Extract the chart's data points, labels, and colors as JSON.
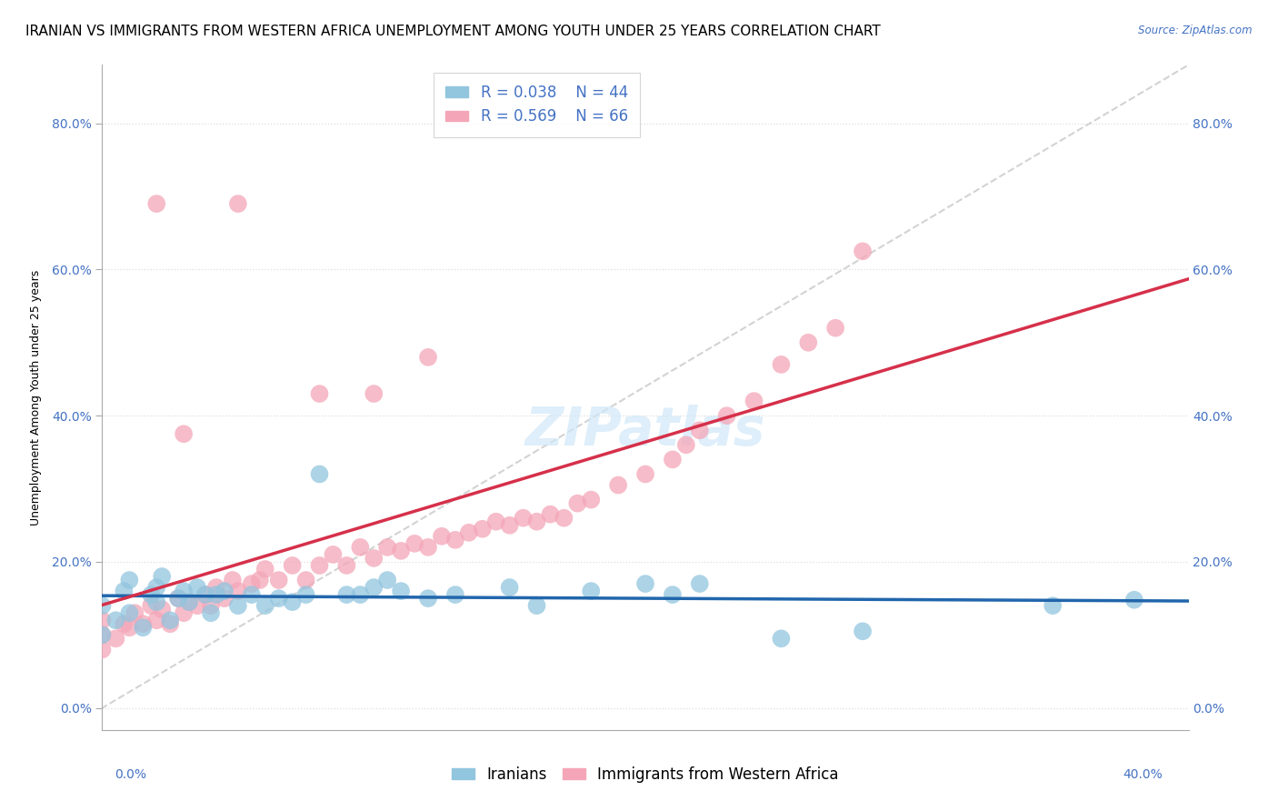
{
  "title": "IRANIAN VS IMMIGRANTS FROM WESTERN AFRICA UNEMPLOYMENT AMONG YOUTH UNDER 25 YEARS CORRELATION CHART",
  "source": "Source: ZipAtlas.com",
  "ylabel": "Unemployment Among Youth under 25 years",
  "yticks": [
    "0.0%",
    "20.0%",
    "40.0%",
    "60.0%",
    "80.0%"
  ],
  "ytick_vals": [
    0.0,
    0.2,
    0.4,
    0.6,
    0.8
  ],
  "xrange": [
    0.0,
    0.4
  ],
  "yrange": [
    -0.03,
    0.88
  ],
  "R_iranians": 0.038,
  "N_iranians": 44,
  "R_western_africa": 0.569,
  "N_western_africa": 66,
  "color_iranians": "#92c5de",
  "color_western_africa": "#f4a6b8",
  "regression_color_iranians": "#2166ac",
  "regression_color_western_africa": "#d6304a",
  "diagonal_color": "#c8c8c8",
  "iranians_x": [
    0.0,
    0.0,
    0.005,
    0.008,
    0.01,
    0.01,
    0.015,
    0.018,
    0.02,
    0.02,
    0.022,
    0.025,
    0.028,
    0.03,
    0.032,
    0.035,
    0.038,
    0.04,
    0.042,
    0.045,
    0.05,
    0.055,
    0.06,
    0.065,
    0.07,
    0.075,
    0.08,
    0.09,
    0.095,
    0.1,
    0.105,
    0.11,
    0.12,
    0.13,
    0.15,
    0.16,
    0.18,
    0.2,
    0.21,
    0.22,
    0.25,
    0.28,
    0.35,
    0.38
  ],
  "iranians_y": [
    0.1,
    0.14,
    0.12,
    0.16,
    0.13,
    0.175,
    0.11,
    0.155,
    0.145,
    0.165,
    0.18,
    0.12,
    0.15,
    0.16,
    0.145,
    0.165,
    0.155,
    0.13,
    0.155,
    0.16,
    0.14,
    0.155,
    0.14,
    0.15,
    0.145,
    0.155,
    0.32,
    0.155,
    0.155,
    0.165,
    0.175,
    0.16,
    0.15,
    0.155,
    0.165,
    0.14,
    0.16,
    0.17,
    0.155,
    0.17,
    0.095,
    0.105,
    0.14,
    0.148
  ],
  "western_africa_x": [
    0.0,
    0.0,
    0.0,
    0.005,
    0.008,
    0.01,
    0.012,
    0.015,
    0.018,
    0.02,
    0.022,
    0.025,
    0.028,
    0.03,
    0.032,
    0.035,
    0.038,
    0.04,
    0.042,
    0.045,
    0.048,
    0.05,
    0.055,
    0.058,
    0.06,
    0.065,
    0.07,
    0.075,
    0.08,
    0.085,
    0.09,
    0.095,
    0.1,
    0.105,
    0.11,
    0.115,
    0.12,
    0.125,
    0.13,
    0.135,
    0.14,
    0.145,
    0.15,
    0.155,
    0.16,
    0.165,
    0.17,
    0.175,
    0.18,
    0.19,
    0.2,
    0.21,
    0.215,
    0.22,
    0.23,
    0.24,
    0.25,
    0.26,
    0.27,
    0.05,
    0.12,
    0.03,
    0.08,
    0.1,
    0.28,
    0.02
  ],
  "western_africa_y": [
    0.08,
    0.1,
    0.12,
    0.095,
    0.115,
    0.11,
    0.13,
    0.115,
    0.14,
    0.12,
    0.135,
    0.115,
    0.15,
    0.13,
    0.145,
    0.14,
    0.155,
    0.14,
    0.165,
    0.15,
    0.175,
    0.16,
    0.17,
    0.175,
    0.19,
    0.175,
    0.195,
    0.175,
    0.195,
    0.21,
    0.195,
    0.22,
    0.205,
    0.22,
    0.215,
    0.225,
    0.22,
    0.235,
    0.23,
    0.24,
    0.245,
    0.255,
    0.25,
    0.26,
    0.255,
    0.265,
    0.26,
    0.28,
    0.285,
    0.305,
    0.32,
    0.34,
    0.36,
    0.38,
    0.4,
    0.42,
    0.47,
    0.5,
    0.52,
    0.69,
    0.48,
    0.375,
    0.43,
    0.43,
    0.625,
    0.69
  ],
  "background_color": "#ffffff",
  "grid_color": "#dddddd",
  "title_fontsize": 11,
  "axis_label_fontsize": 9,
  "tick_fontsize": 10,
  "legend_fontsize": 12
}
